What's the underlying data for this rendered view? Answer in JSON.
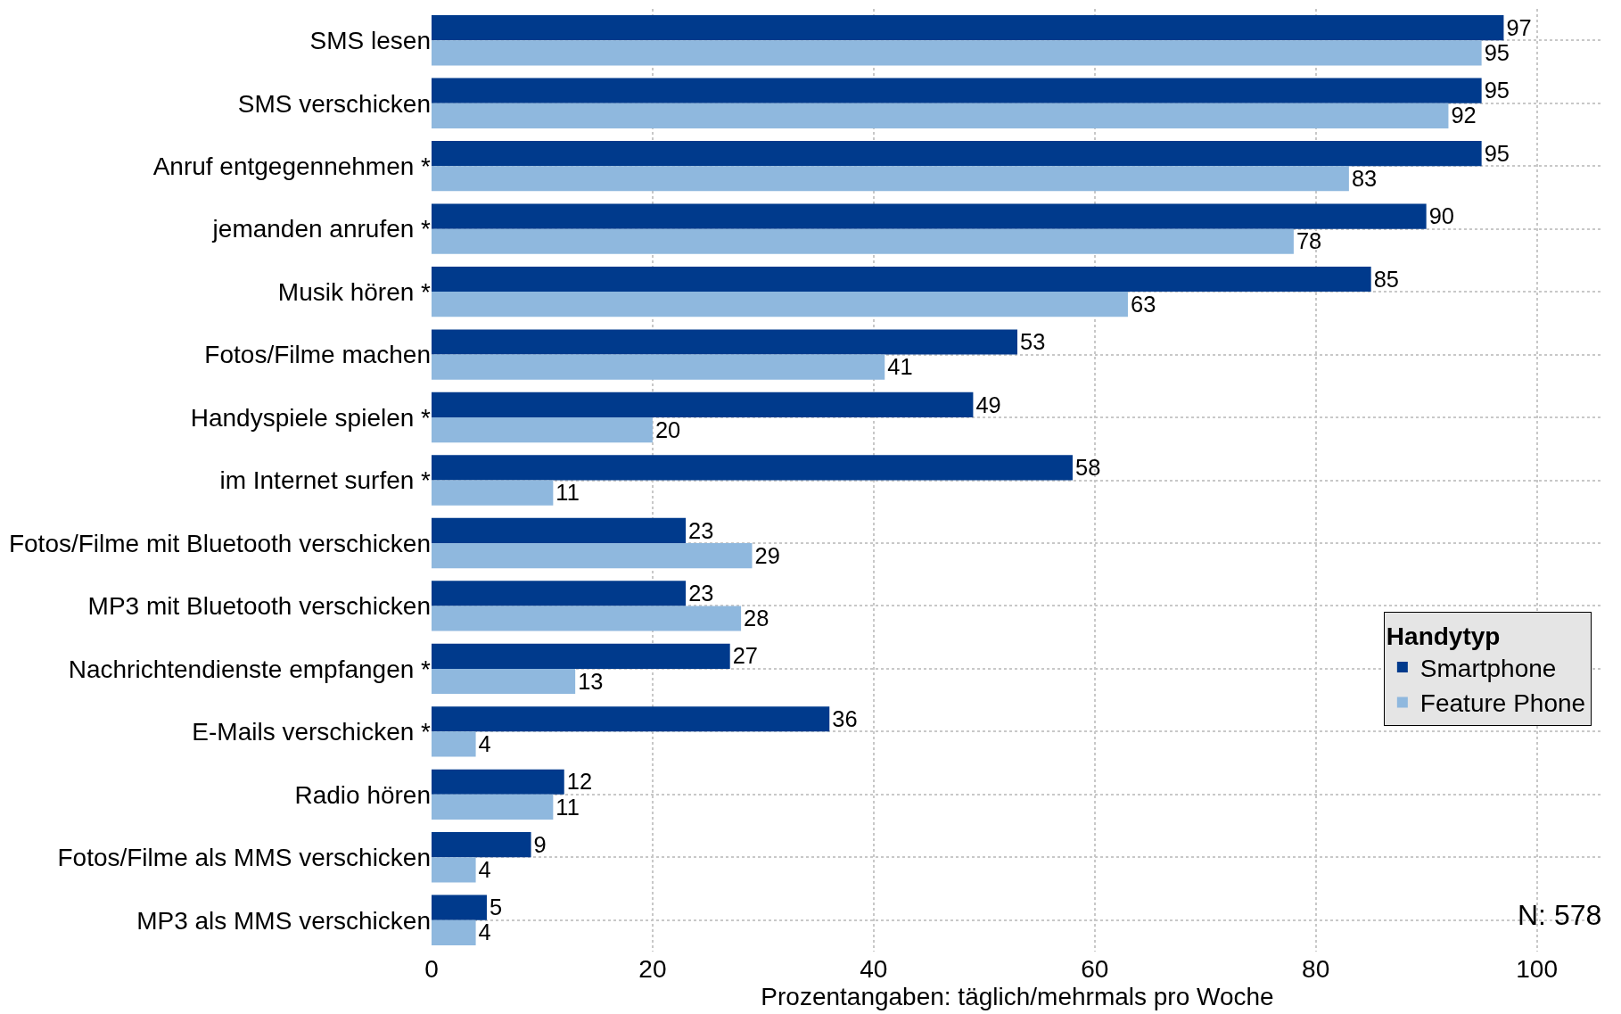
{
  "chart_data": {
    "type": "bar",
    "orientation": "horizontal",
    "xlabel": "Prozentangaben: täglich/mehrmals pro Woche",
    "legend_title": "Handytyp",
    "categories": [
      "SMS lesen",
      "SMS verschicken",
      "Anruf entgegennehmen *",
      "jemanden anrufen *",
      "Musik hören *",
      "Fotos/Filme machen",
      "Handyspiele spielen *",
      "im Internet surfen *",
      "Fotos/Filme mit Bluetooth verschicken",
      "MP3 mit Bluetooth verschicken",
      "Nachrichtendienste empfangen *",
      "E-Mails verschicken *",
      "Radio hören",
      "Fotos/Filme als MMS verschicken",
      "MP3 als MMS verschicken"
    ],
    "series": [
      {
        "name": "Smartphone",
        "color": "#003a8c",
        "values": [
          97,
          95,
          95,
          90,
          85,
          53,
          49,
          58,
          23,
          23,
          27,
          36,
          12,
          9,
          5
        ]
      },
      {
        "name": "Feature Phone",
        "color": "#8fb8de",
        "values": [
          95,
          92,
          83,
          78,
          63,
          41,
          20,
          11,
          29,
          28,
          13,
          4,
          11,
          4,
          4
        ]
      }
    ],
    "xlim": [
      0,
      106
    ],
    "xticks": [
      0,
      20,
      40,
      60,
      80,
      100
    ],
    "grid": true,
    "legend": "right",
    "data_labels": true,
    "annotations": [
      "N: 578"
    ]
  }
}
